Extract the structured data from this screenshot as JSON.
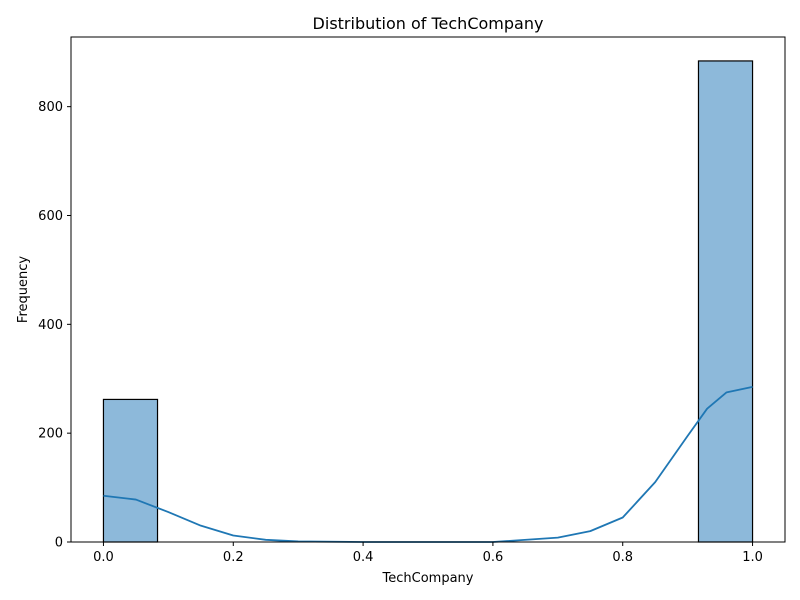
{
  "chart_data": {
    "type": "bar",
    "title": "Distribution of TechCompany",
    "xlabel": "TechCompany",
    "ylabel": "Frequency",
    "xlim": [
      -0.05,
      1.05
    ],
    "ylim": [
      0,
      928
    ],
    "xticks": [
      0.0,
      0.2,
      0.4,
      0.6,
      0.8,
      1.0
    ],
    "xtick_labels": [
      "0.0",
      "0.2",
      "0.4",
      "0.6",
      "0.8",
      "1.0"
    ],
    "yticks": [
      0,
      200,
      400,
      600,
      800
    ],
    "ytick_labels": [
      "0",
      "200",
      "400",
      "600",
      "800"
    ],
    "bins": [
      {
        "x0": 0.0,
        "x1": 0.0833,
        "count": 262
      },
      {
        "x0": 0.9167,
        "x1": 1.0,
        "count": 884
      }
    ],
    "kde": {
      "x": [
        0.0,
        0.05,
        0.1,
        0.15,
        0.2,
        0.25,
        0.3,
        0.4,
        0.5,
        0.6,
        0.7,
        0.75,
        0.8,
        0.85,
        0.9,
        0.93,
        0.96,
        1.0
      ],
      "y": [
        85,
        78,
        55,
        30,
        12,
        4,
        1,
        0,
        0,
        0,
        8,
        20,
        45,
        110,
        195,
        245,
        275,
        285
      ]
    },
    "colors": {
      "bar_fill": "#8db9da",
      "bar_edge": "#000000",
      "kde_line": "#1f77b4"
    },
    "grid": false
  }
}
